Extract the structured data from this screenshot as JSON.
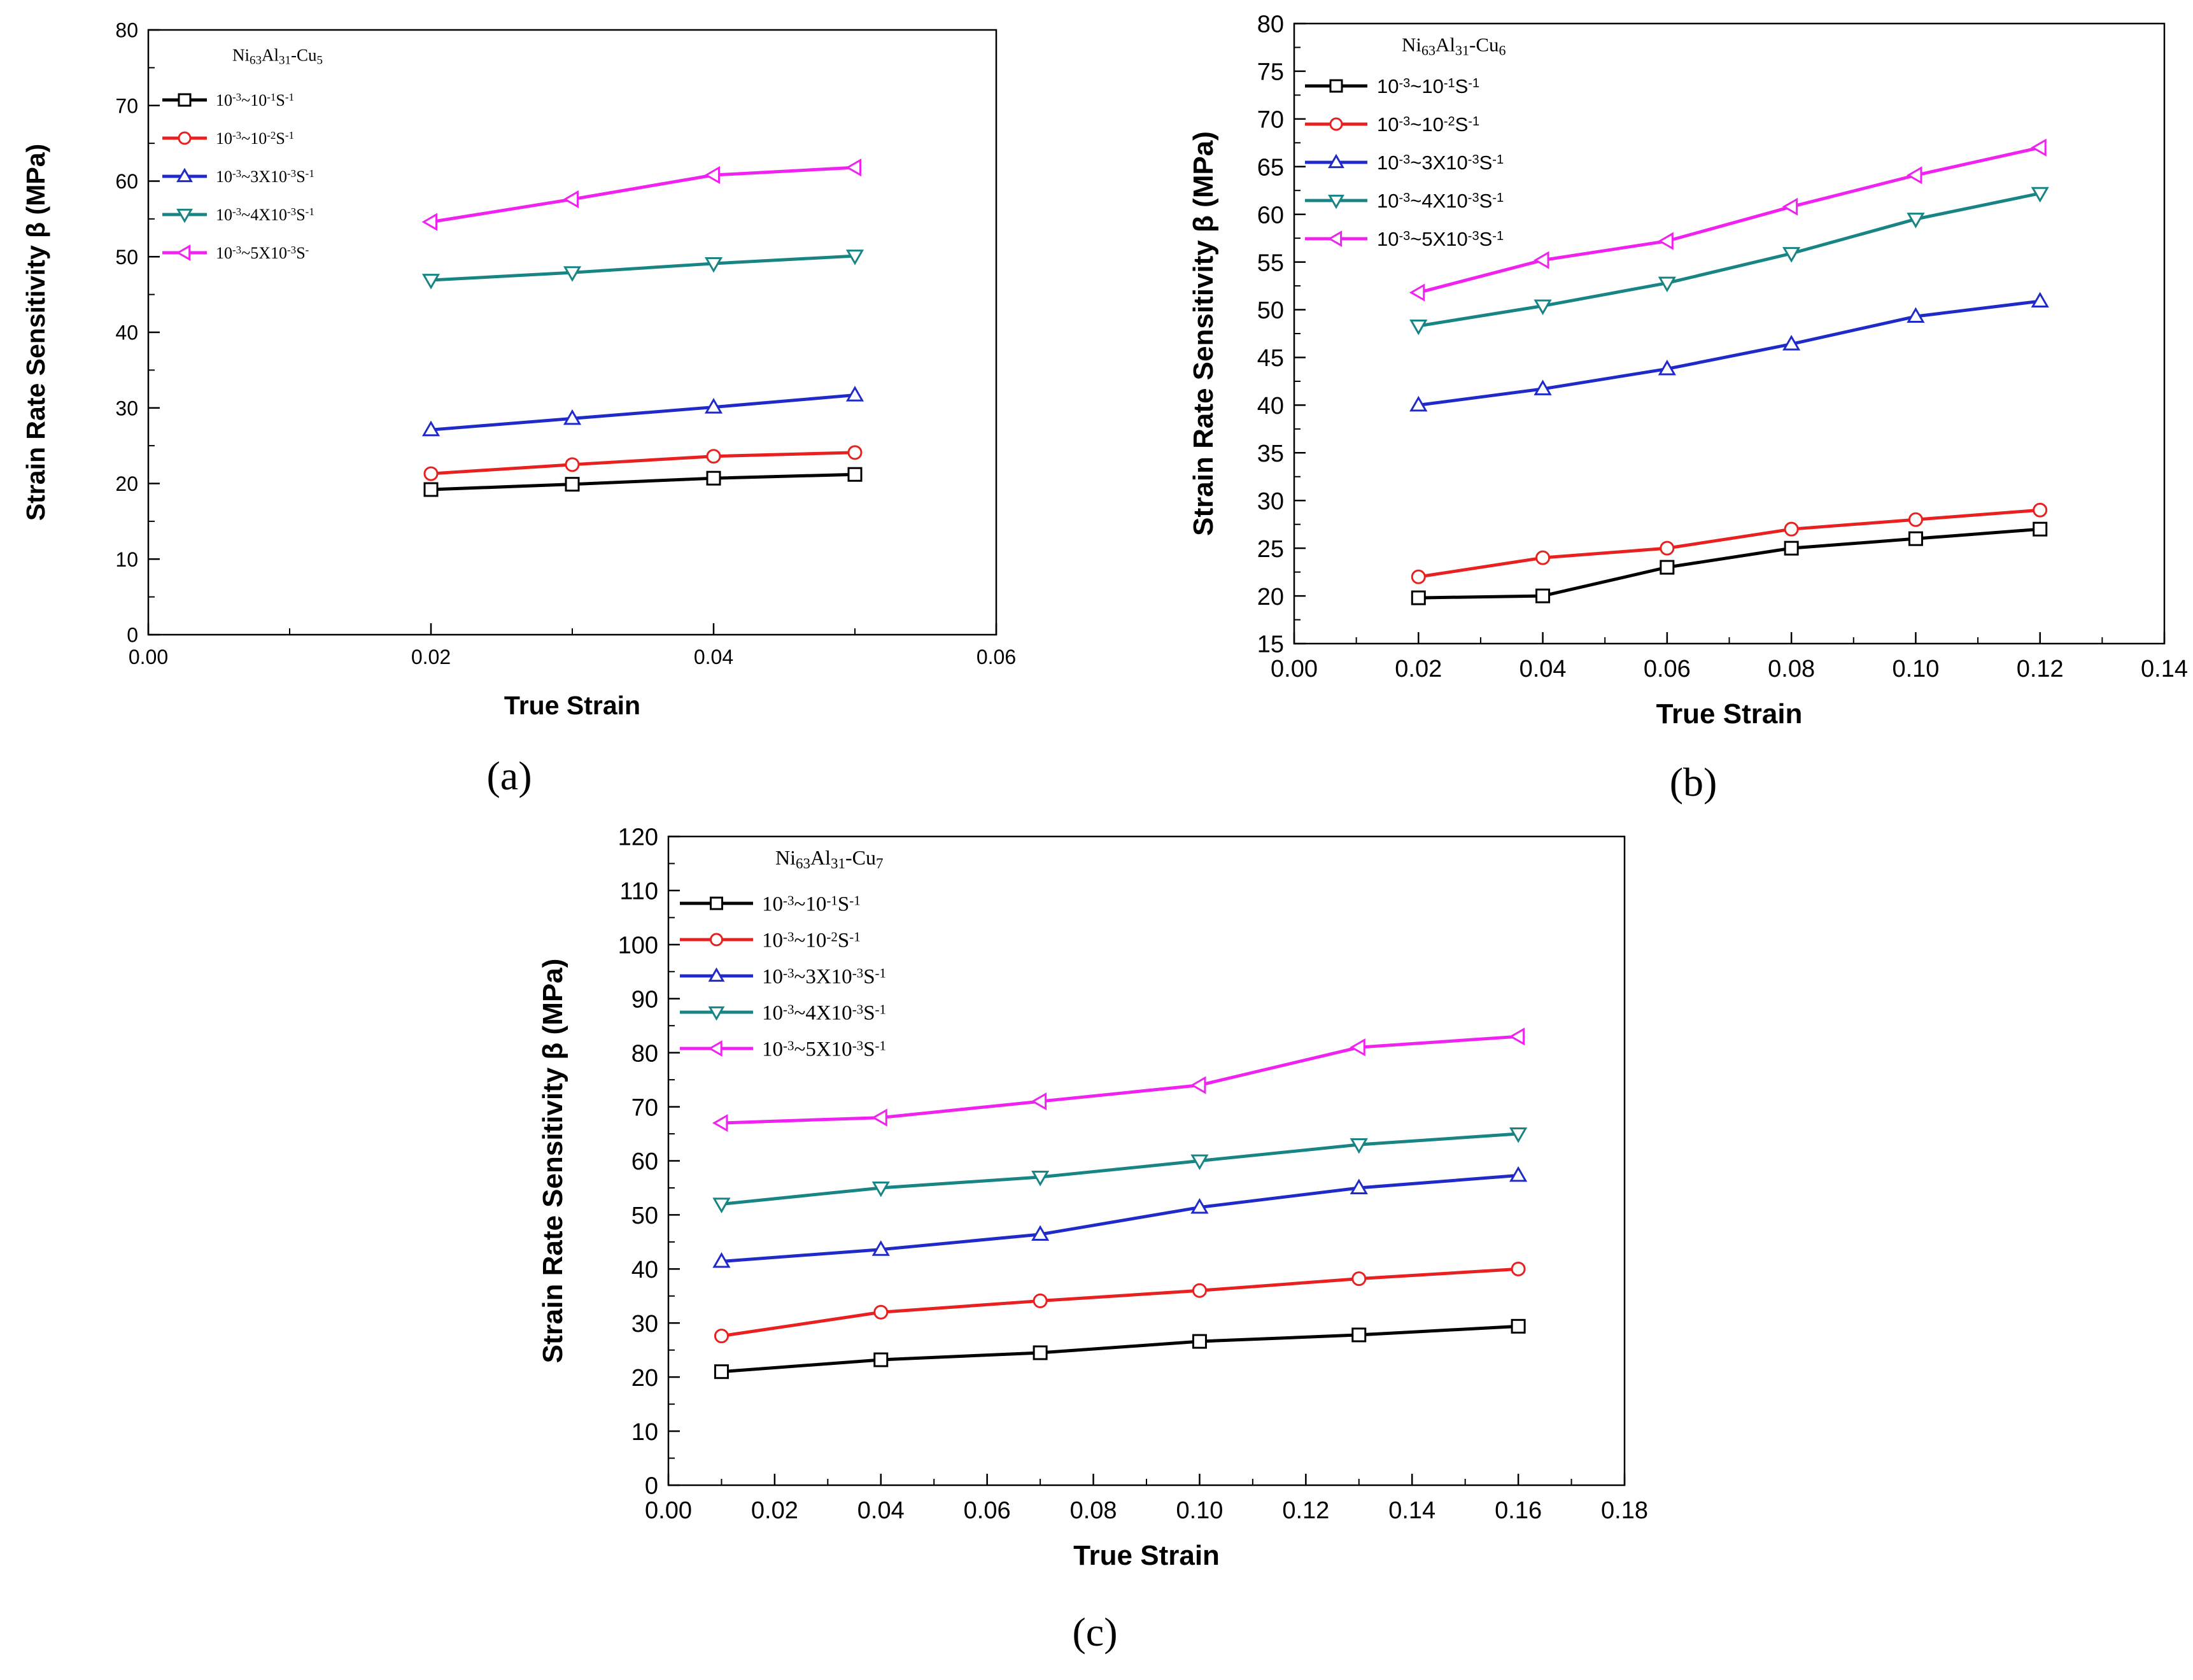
{
  "figure": {
    "series_colors": [
      "#000000",
      "#e8201f",
      "#1f2ac8",
      "#188484",
      "#f022f0"
    ],
    "marker_shapes": [
      "square",
      "circle",
      "triangle-up",
      "triangle-down",
      "triangle-left"
    ]
  },
  "chart_data": [
    {
      "id": "a",
      "type": "line",
      "panel_label": "(a)",
      "legend_title": "Ni63Al31-Cu5",
      "legend_title_parts": {
        "base1": "Ni",
        "sub1": "63",
        "base2": "Al",
        "sub2": "31",
        "base3": "-Cu",
        "sub3": "5"
      },
      "legend_placement": "top-left",
      "xlabel": "True Strain",
      "ylabel": "Strain Rate Sensitivity β (MPa)",
      "xlim": [
        0,
        0.06
      ],
      "ylim": [
        0,
        80
      ],
      "x_ticks": [
        "0.00",
        "0.02",
        "0.04",
        "0.06"
      ],
      "x_tick_values": [
        0,
        0.02,
        0.04,
        0.06
      ],
      "y_ticks": [
        "0",
        "10",
        "20",
        "30",
        "40",
        "50",
        "60",
        "70",
        "80"
      ],
      "y_tick_values": [
        0,
        10,
        20,
        30,
        40,
        50,
        60,
        70,
        80
      ],
      "x": [
        0.02,
        0.03,
        0.04,
        0.05
      ],
      "series": [
        {
          "name": "10-3~10-1S-1",
          "label_parts": [
            "10",
            "-3",
            "~10",
            "-1",
            "S",
            "-1"
          ],
          "values": [
            19.2,
            19.9,
            20.7,
            21.2
          ]
        },
        {
          "name": "10-3~10-2S-1",
          "label_parts": [
            "10",
            "-3",
            "~10",
            "-2",
            "S",
            "-1"
          ],
          "values": [
            21.3,
            22.5,
            23.6,
            24.1
          ]
        },
        {
          "name": "10-3~3X10-3S-1",
          "label_parts": [
            "10",
            "-3",
            "~3X10",
            "-3",
            "S",
            "-1"
          ],
          "values": [
            27.1,
            28.6,
            30.1,
            31.7
          ]
        },
        {
          "name": "10-3~4X10-3S-1",
          "label_parts": [
            "10",
            "-3",
            "~4X10",
            "-3",
            "S",
            "-1"
          ],
          "values": [
            46.9,
            47.9,
            49.1,
            50.1
          ]
        },
        {
          "name": "10-3~5X10-3S-",
          "label_parts": [
            "10",
            "-3",
            "~5X10",
            "-3",
            "S",
            "-"
          ],
          "values": [
            54.6,
            57.6,
            60.8,
            61.8
          ]
        }
      ]
    },
    {
      "id": "b",
      "type": "line",
      "panel_label": "(b)",
      "legend_title": "Ni63Al31-Cu6",
      "legend_title_parts": {
        "base1": "Ni",
        "sub1": "63",
        "base2": "Al",
        "sub2": "31",
        "base3": "-Cu",
        "sub3": "6"
      },
      "legend_placement": "top-left",
      "xlabel": "True Strain",
      "ylabel": "Strain Rate Sensitivity β (MPa)",
      "xlim": [
        0,
        0.14
      ],
      "ylim": [
        15,
        80
      ],
      "x_ticks": [
        "0.00",
        "0.02",
        "0.04",
        "0.06",
        "0.08",
        "0.10",
        "0.12",
        "0.14"
      ],
      "x_tick_values": [
        0,
        0.02,
        0.04,
        0.06,
        0.08,
        0.1,
        0.12,
        0.14
      ],
      "y_ticks": [
        "15",
        "20",
        "25",
        "30",
        "35",
        "40",
        "45",
        "50",
        "55",
        "60",
        "65",
        "70",
        "75",
        "80"
      ],
      "y_tick_values": [
        15,
        20,
        25,
        30,
        35,
        40,
        45,
        50,
        55,
        60,
        65,
        70,
        75,
        80
      ],
      "x": [
        0.02,
        0.04,
        0.06,
        0.08,
        0.1,
        0.12
      ],
      "series": [
        {
          "name": "10-3~10-1S-1",
          "label_parts": [
            "10",
            "-3",
            "~10",
            "-1",
            "S",
            "-1"
          ],
          "values": [
            19.8,
            20.0,
            23.0,
            25.0,
            26.0,
            27.0
          ]
        },
        {
          "name": "10-3~10-2S-1",
          "label_parts": [
            "10",
            "-3",
            "~10",
            "-2",
            "S",
            "-1"
          ],
          "values": [
            22.0,
            24.0,
            25.0,
            27.0,
            28.0,
            29.0
          ]
        },
        {
          "name": "10-3~3X10-3S-1",
          "label_parts": [
            "10",
            "-3",
            "~3X10",
            "-3",
            "S",
            "-1"
          ],
          "values": [
            40.0,
            41.7,
            43.8,
            46.4,
            49.3,
            50.9
          ]
        },
        {
          "name": "10-3~4X10-3S-1",
          "label_parts": [
            "10",
            "-3",
            "~4X10",
            "-3",
            "S",
            "-1"
          ],
          "values": [
            48.3,
            50.4,
            52.8,
            55.9,
            59.5,
            62.2
          ]
        },
        {
          "name": "10-3~5X10-3S-1",
          "label_parts": [
            "10",
            "-3",
            "~5X10",
            "-3",
            "S",
            "-1"
          ],
          "values": [
            51.8,
            55.2,
            57.2,
            60.8,
            64.1,
            67.0
          ]
        }
      ]
    },
    {
      "id": "c",
      "type": "line",
      "panel_label": "(c)",
      "legend_title": "Ni63Al31-Cu7",
      "legend_title_parts": {
        "base1": "Ni",
        "sub1": "63",
        "base2": "Al",
        "sub2": "31",
        "base3": "-Cu",
        "sub3": "7"
      },
      "legend_placement": "top-left",
      "xlabel": "True Strain",
      "ylabel": "Strain Rate Sensitivity β (MPa)",
      "xlim": [
        0,
        0.18
      ],
      "ylim": [
        0,
        120
      ],
      "x_ticks": [
        "0.00",
        "0.02",
        "0.04",
        "0.06",
        "0.08",
        "0.10",
        "0.12",
        "0.14",
        "0.16",
        "0.18"
      ],
      "x_tick_values": [
        0,
        0.02,
        0.04,
        0.06,
        0.08,
        0.1,
        0.12,
        0.14,
        0.16,
        0.18
      ],
      "y_ticks": [
        "0",
        "10",
        "20",
        "30",
        "40",
        "50",
        "60",
        "70",
        "80",
        "90",
        "100",
        "110",
        "120"
      ],
      "y_tick_values": [
        0,
        10,
        20,
        30,
        40,
        50,
        60,
        70,
        80,
        90,
        100,
        110,
        120
      ],
      "x": [
        0.01,
        0.04,
        0.07,
        0.1,
        0.13,
        0.16
      ],
      "series": [
        {
          "name": "10-3~10-1S-1",
          "label_parts": [
            "10",
            "-3",
            "~10",
            "-1",
            "S",
            "-1"
          ],
          "values": [
            21.0,
            23.2,
            24.5,
            26.6,
            27.8,
            29.4
          ]
        },
        {
          "name": "10-3~10-2S-1",
          "label_parts": [
            "10",
            "-3",
            "~10",
            "-2",
            "S",
            "-1"
          ],
          "values": [
            27.6,
            32.0,
            34.1,
            36.0,
            38.2,
            40.0
          ]
        },
        {
          "name": "10-3~3X10-3S-1",
          "label_parts": [
            "10",
            "-3",
            "~3X10",
            "-3",
            "S",
            "-1"
          ],
          "values": [
            41.4,
            43.6,
            46.4,
            51.4,
            55.0,
            57.3
          ]
        },
        {
          "name": "10-3~4X10-3S-1",
          "label_parts": [
            "10",
            "-3",
            "~4X10",
            "-3",
            "S",
            "-1"
          ],
          "values": [
            52.0,
            55.0,
            57.0,
            60.0,
            63.0,
            65.0
          ]
        },
        {
          "name": "10-3~5X10-3S-1",
          "label_parts": [
            "10",
            "-3",
            "~5X10",
            "-3",
            "S",
            "-1"
          ],
          "values": [
            67.0,
            68.0,
            71.0,
            74.0,
            81.0,
            83.0
          ]
        }
      ]
    }
  ]
}
